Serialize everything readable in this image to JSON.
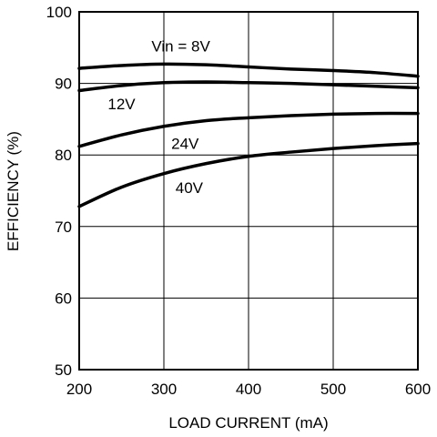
{
  "chart_data": {
    "type": "line",
    "title": "",
    "xlabel": "LOAD CURRENT (mA)",
    "ylabel": "EFFICIENCY (%)",
    "xlim": [
      200,
      600
    ],
    "ylim": [
      50,
      100
    ],
    "xticks": [
      200,
      300,
      400,
      500,
      600
    ],
    "yticks": [
      50,
      60,
      70,
      80,
      90,
      100
    ],
    "grid": true,
    "legend": "inline labels",
    "line_color": "#000000",
    "series": [
      {
        "name": "Vin = 8V",
        "x": [
          200,
          250,
          300,
          350,
          400,
          450,
          500,
          550,
          600
        ],
        "y": [
          92.1,
          92.5,
          92.7,
          92.6,
          92.3,
          92.0,
          91.8,
          91.5,
          91.0
        ]
      },
      {
        "name": "12V",
        "x": [
          200,
          250,
          300,
          350,
          400,
          450,
          500,
          550,
          600
        ],
        "y": [
          89.0,
          89.7,
          90.1,
          90.2,
          90.1,
          90.0,
          89.8,
          89.6,
          89.4
        ]
      },
      {
        "name": "24V",
        "x": [
          200,
          250,
          300,
          350,
          400,
          450,
          500,
          550,
          600
        ],
        "y": [
          81.2,
          82.8,
          84.0,
          84.8,
          85.2,
          85.5,
          85.7,
          85.8,
          85.8
        ]
      },
      {
        "name": "40V",
        "x": [
          200,
          250,
          300,
          350,
          400,
          450,
          500,
          550,
          600
        ],
        "y": [
          72.8,
          75.5,
          77.4,
          78.8,
          79.8,
          80.4,
          80.9,
          81.3,
          81.6
        ]
      }
    ]
  }
}
